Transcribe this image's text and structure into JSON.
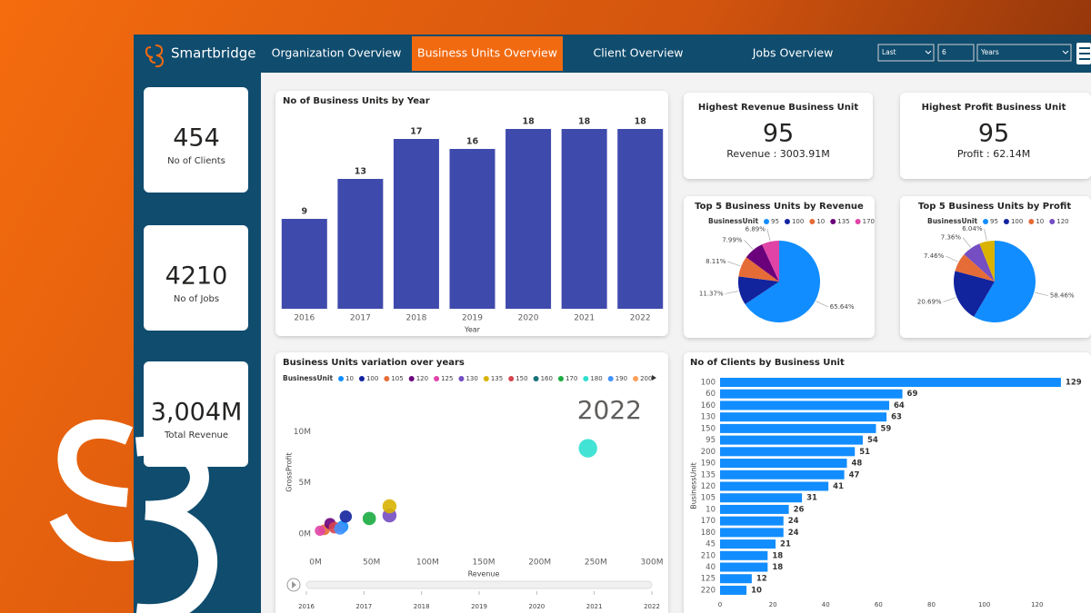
{
  "nav": {
    "brand": "Smartbridge",
    "tabs": [
      "Organization Overview",
      "Business Units Overview",
      "Client Overview",
      "Jobs Overview"
    ],
    "active_tab": 1,
    "filters": [
      "Last",
      "6",
      "Years"
    ]
  },
  "kpis": [
    {
      "value": 454,
      "label": "No of Clients"
    },
    {
      "value": 4210,
      "label": "No of Jobs"
    },
    {
      "value": "3,004M",
      "label": "Total Revenue"
    }
  ],
  "highlight_cards": [
    {
      "title": "Highest Revenue Business Unit",
      "value": 95,
      "detail": "Revenue : 3003.91M"
    },
    {
      "title": "Highest Profit Business Unit",
      "value": 95,
      "detail": "Profit : 62.14M"
    }
  ],
  "chart_data": [
    {
      "type": "bar",
      "title": "No of Business Units by Year",
      "x_label": "Year",
      "categories": [
        "2016",
        "2017",
        "2018",
        "2019",
        "2020",
        "2021",
        "2022"
      ],
      "values": [
        9,
        13,
        17,
        16,
        18,
        18,
        18
      ],
      "color": "#3f4aad"
    },
    {
      "type": "pie",
      "title": "Top 5 Business Units by Revenue",
      "legend_title": "BusinessUnit",
      "categories": [
        "95",
        "100",
        "10",
        "135",
        "170"
      ],
      "values": [
        65.64,
        11.37,
        8.11,
        7.99,
        6.89
      ],
      "value_labels": [
        "65.64%",
        "11.37%",
        "8.11%",
        "7.99%",
        "6.89%"
      ],
      "colors": [
        "#118dff",
        "#12239e",
        "#e66c37",
        "#6b007b",
        "#e044a7"
      ]
    },
    {
      "type": "pie",
      "title": "Top 5 Business Units by Profit",
      "legend_title": "BusinessUnit",
      "categories": [
        "95",
        "100",
        "10",
        "120",
        null
      ],
      "values": [
        58.46,
        20.69,
        7.46,
        7.36,
        6.04
      ],
      "value_labels": [
        "58.46%",
        "20.69%",
        "7.46%",
        "7.36%",
        "6.04%"
      ],
      "colors": [
        "#118dff",
        "#12239e",
        "#e66c37",
        "#744ec2",
        "#d9b300"
      ]
    },
    {
      "type": "scatter",
      "title": "Business Units variation over years",
      "legend_title": "BusinessUnit",
      "x_label": "Revenue",
      "y_label": "GrossProfit",
      "play_label": "2022",
      "play_axis": [
        "2016",
        "2017",
        "2018",
        "2019",
        "2020",
        "2021",
        "2022"
      ],
      "xlim": [
        0,
        300
      ],
      "xticks": [
        {
          "value": 0,
          "label": "0M"
        },
        {
          "value": 50,
          "label": "50M"
        },
        {
          "value": 100,
          "label": "100M"
        },
        {
          "value": 150,
          "label": "150M"
        },
        {
          "value": 200,
          "label": "200M"
        },
        {
          "value": 250,
          "label": "250M"
        },
        {
          "value": 300,
          "label": "300M"
        }
      ],
      "ylim": [
        -1,
        13
      ],
      "yticks": [
        {
          "value": 0,
          "label": "0M"
        },
        {
          "value": 5,
          "label": "5M"
        },
        {
          "value": 10,
          "label": "10M"
        }
      ],
      "series": [
        {
          "name": "10",
          "color": "#118dff",
          "x": [
            24
          ],
          "values": [
            0.7
          ]
        },
        {
          "name": "100",
          "color": "#12239e",
          "x": [
            27
          ],
          "values": [
            1.7
          ]
        },
        {
          "name": "105",
          "color": "#e66c37",
          "x": [
            8
          ],
          "values": [
            0.4
          ]
        },
        {
          "name": "120",
          "color": "#6b007b",
          "x": [
            13
          ],
          "values": [
            1.0
          ]
        },
        {
          "name": "125",
          "color": "#e044a7",
          "x": [
            4
          ],
          "values": [
            0.3
          ]
        },
        {
          "name": "130",
          "color": "#744ec2",
          "x": [
            66
          ],
          "values": [
            1.8
          ]
        },
        {
          "name": "135",
          "color": "#d9b300",
          "x": [
            66
          ],
          "values": [
            2.7
          ]
        },
        {
          "name": "150",
          "color": "#d64550",
          "x": [
            17
          ],
          "values": [
            0.6
          ]
        },
        {
          "name": "160",
          "color": "#197278",
          "x": [],
          "values": []
        },
        {
          "name": "170",
          "color": "#1aab40",
          "x": [
            48
          ],
          "values": [
            1.5
          ]
        },
        {
          "name": "180",
          "color": "#2ee0cf",
          "x": [
            243
          ],
          "values": [
            8.4
          ]
        },
        {
          "name": "190",
          "color": "#4092ff",
          "x": [
            22
          ],
          "values": [
            0.5
          ]
        },
        {
          "name": "200",
          "color": "#ffa058",
          "x": [],
          "values": []
        }
      ]
    },
    {
      "type": "bar",
      "orientation": "horizontal",
      "title": "No of Clients by Business Unit",
      "y_label": "BusinessUnit",
      "categories": [
        "100",
        "60",
        "160",
        "130",
        "150",
        "95",
        "200",
        "190",
        "135",
        "120",
        "105",
        "10",
        "170",
        "180",
        "45",
        "210",
        "40",
        "125",
        "220"
      ],
      "values": [
        129,
        69,
        64,
        63,
        59,
        54,
        51,
        48,
        47,
        41,
        31,
        26,
        24,
        24,
        21,
        18,
        18,
        12,
        10
      ],
      "color": "#118dff",
      "xlim": [
        0,
        139
      ],
      "xticks": [
        0,
        20,
        40,
        60,
        80,
        100,
        120
      ]
    }
  ]
}
